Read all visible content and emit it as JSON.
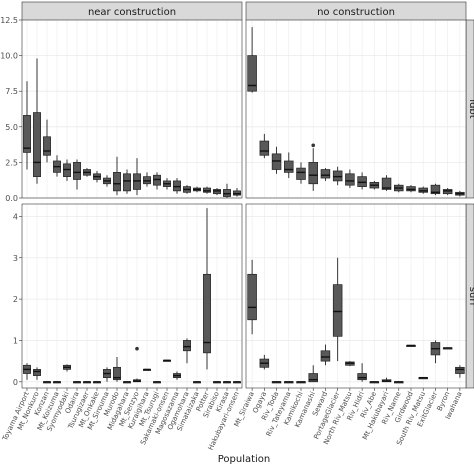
{
  "x_axis_title": "Population",
  "y_axis_title": "",
  "panels": {
    "near": {
      "strip_label": "near construction",
      "populations": [
        "Toyama Airport",
        "Mt_Nonkuro",
        "Konzan",
        "Mt_Koizuma",
        "Syomyodaki",
        "Odaira",
        "Tsurugizaer",
        "Mt_Onkake",
        "Mt_Sirouma",
        "Murodo",
        "Midagahara",
        "Mt_Senzyo",
        "Kuraigihara",
        "Mt_Tsurugi",
        "Sakamaki-onsen",
        "Magosazama",
        "Ogamohara",
        "Simataizaka",
        "Potter",
        "Sirabiso",
        "Kirasa",
        "Hakubayari-onsen"
      ]
    },
    "no": {
      "strip_label": "no construction",
      "populations": [
        "Mt_Siraiwa",
        "Ogaya",
        "Riv_Toda",
        "Riv_Tateyama",
        "Kamikochi",
        "Kamanashi",
        "Seward",
        "PortageGlacier",
        "North Riv_Matsu",
        "Riv_Hidri",
        "Riv_Abe",
        "Mt_Hakubayari",
        "Riv_Name",
        "Girdwood",
        "South Riv_Matsu",
        "ExitGlacier",
        "Byron",
        "Iwahana"
      ]
    }
  },
  "rows": {
    "top": {
      "strip_label": "ldbt"
    },
    "bottom": {
      "strip_label": "suri"
    }
  },
  "chart_data": {
    "type": "boxplot",
    "facets": [
      "near construction",
      "no construction"
    ],
    "rows": [
      "ldbt",
      "suri"
    ],
    "xlabel": "Population",
    "ylabel": "",
    "top_row": {
      "ylim": [
        0,
        12.5
      ],
      "yticks": [
        0,
        2.5,
        5.0,
        7.5,
        10.0,
        12.5
      ],
      "near construction": [
        {
          "q1": 3.2,
          "median": 3.5,
          "q3": 5.8,
          "whisker_low": 2.0,
          "whisker_high": 8.2
        },
        {
          "q1": 1.5,
          "median": 2.5,
          "q3": 6.0,
          "whisker_low": 1.0,
          "whisker_high": 9.8
        },
        {
          "q1": 3.0,
          "median": 3.3,
          "q3": 4.3,
          "whisker_low": 2.5,
          "whisker_high": 5.5
        },
        {
          "q1": 1.8,
          "median": 2.2,
          "q3": 2.6,
          "whisker_low": 1.5,
          "whisker_high": 3.0
        },
        {
          "q1": 1.5,
          "median": 2.0,
          "q3": 2.4,
          "whisker_low": 1.2,
          "whisker_high": 2.7
        },
        {
          "q1": 1.3,
          "median": 1.8,
          "q3": 2.5,
          "whisker_low": 0.6,
          "whisker_high": 2.7
        },
        {
          "q1": 1.6,
          "median": 1.8,
          "q3": 2.0,
          "whisker_low": 1.5,
          "whisker_high": 2.1
        },
        {
          "q1": 1.3,
          "median": 1.5,
          "q3": 1.7,
          "whisker_low": 1.1,
          "whisker_high": 1.9
        },
        {
          "q1": 1.0,
          "median": 1.2,
          "q3": 1.4,
          "whisker_low": 0.8,
          "whisker_high": 1.6
        },
        {
          "q1": 0.5,
          "median": 1.0,
          "q3": 1.8,
          "whisker_low": 0.2,
          "whisker_high": 2.9
        },
        {
          "q1": 0.5,
          "median": 1.2,
          "q3": 1.7,
          "whisker_low": 0.3,
          "whisker_high": 2.0
        },
        {
          "q1": 0.6,
          "median": 1.2,
          "q3": 1.7,
          "whisker_low": 0.2,
          "whisker_high": 2.8
        },
        {
          "q1": 1.0,
          "median": 1.2,
          "q3": 1.5,
          "whisker_low": 0.8,
          "whisker_high": 1.8
        },
        {
          "q1": 0.9,
          "median": 1.3,
          "q3": 1.6,
          "whisker_low": 0.6,
          "whisker_high": 1.8
        },
        {
          "q1": 0.8,
          "median": 1.0,
          "q3": 1.2,
          "whisker_low": 0.6,
          "whisker_high": 1.4
        },
        {
          "q1": 0.5,
          "median": 0.8,
          "q3": 1.2,
          "whisker_low": 0.3,
          "whisker_high": 1.4
        },
        {
          "q1": 0.4,
          "median": 0.6,
          "q3": 0.8,
          "whisker_low": 0.3,
          "whisker_high": 0.9
        },
        {
          "q1": 0.5,
          "median": 0.6,
          "q3": 0.7,
          "whisker_low": 0.4,
          "whisker_high": 0.8
        },
        {
          "q1": 0.4,
          "median": 0.5,
          "q3": 0.7,
          "whisker_low": 0.3,
          "whisker_high": 0.8
        },
        {
          "q1": 0.3,
          "median": 0.5,
          "q3": 0.6,
          "whisker_low": 0.2,
          "whisker_high": 0.7
        },
        {
          "q1": 0.1,
          "median": 0.3,
          "q3": 0.6,
          "whisker_low": 0.0,
          "whisker_high": 1.0
        },
        {
          "q1": 0.2,
          "median": 0.3,
          "q3": 0.5,
          "whisker_low": 0.1,
          "whisker_high": 0.7
        }
      ],
      "no construction": [
        {
          "q1": 7.5,
          "median": 7.9,
          "q3": 10.0,
          "whisker_low": 7.4,
          "whisker_high": 12.0
        },
        {
          "q1": 3.0,
          "median": 3.3,
          "q3": 4.0,
          "whisker_low": 2.8,
          "whisker_high": 4.5
        },
        {
          "q1": 2.0,
          "median": 2.6,
          "q3": 3.1,
          "whisker_low": 1.7,
          "whisker_high": 3.6
        },
        {
          "q1": 1.8,
          "median": 2.0,
          "q3": 2.6,
          "whisker_low": 1.4,
          "whisker_high": 3.2
        },
        {
          "q1": 1.3,
          "median": 1.8,
          "q3": 2.1,
          "whisker_low": 1.0,
          "whisker_high": 2.5
        },
        {
          "q1": 1.0,
          "median": 1.6,
          "q3": 2.5,
          "whisker_low": 0.5,
          "whisker_high": 3.5
        },
        {
          "q1": 1.4,
          "median": 1.6,
          "q3": 2.0,
          "whisker_low": 1.2,
          "whisker_high": 2.1
        },
        {
          "q1": 1.2,
          "median": 1.5,
          "q3": 1.9,
          "whisker_low": 0.9,
          "whisker_high": 2.2
        },
        {
          "q1": 0.9,
          "median": 1.2,
          "q3": 1.7,
          "whisker_low": 0.7,
          "whisker_high": 2.0
        },
        {
          "q1": 0.8,
          "median": 1.1,
          "q3": 1.5,
          "whisker_low": 0.6,
          "whisker_high": 1.8
        },
        {
          "q1": 0.7,
          "median": 0.9,
          "q3": 1.1,
          "whisker_low": 0.6,
          "whisker_high": 1.2
        },
        {
          "q1": 0.6,
          "median": 0.7,
          "q3": 1.4,
          "whisker_low": 0.5,
          "whisker_high": 1.6
        },
        {
          "q1": 0.5,
          "median": 0.7,
          "q3": 0.9,
          "whisker_low": 0.4,
          "whisker_high": 1.0
        },
        {
          "q1": 0.5,
          "median": 0.6,
          "q3": 0.8,
          "whisker_low": 0.4,
          "whisker_high": 0.9
        },
        {
          "q1": 0.4,
          "median": 0.5,
          "q3": 0.7,
          "whisker_low": 0.3,
          "whisker_high": 0.8
        },
        {
          "q1": 0.3,
          "median": 0.4,
          "q3": 0.9,
          "whisker_low": 0.2,
          "whisker_high": 1.0
        },
        {
          "q1": 0.3,
          "median": 0.5,
          "q3": 0.6,
          "whisker_low": 0.2,
          "whisker_high": 0.7
        },
        {
          "q1": 0.2,
          "median": 0.3,
          "q3": 0.4,
          "whisker_low": 0.1,
          "whisker_high": 0.5
        }
      ]
    },
    "bottom_row": {
      "ylim": [
        -0.15,
        4.3
      ],
      "yticks": [
        0,
        1,
        2,
        3,
        4
      ],
      "near construction": [
        {
          "q1": 0.2,
          "median": 0.3,
          "q3": 0.4,
          "whisker_low": 0.05,
          "whisker_high": 0.45
        },
        {
          "q1": 0.15,
          "median": 0.25,
          "q3": 0.3,
          "whisker_low": 0.05,
          "whisker_high": 0.35
        },
        {
          "q1": 0.0,
          "median": 0.0,
          "q3": 0.0,
          "whisker_low": 0.0,
          "whisker_high": 0.0
        },
        {
          "q1": 0.0,
          "median": 0.0,
          "q3": 0.0,
          "whisker_low": 0.0,
          "whisker_high": 0.0
        },
        {
          "q1": 0.3,
          "median": 0.35,
          "q3": 0.4,
          "whisker_low": 0.25,
          "whisker_high": 0.42
        },
        {
          "q1": 0.0,
          "median": 0.0,
          "q3": 0.0,
          "whisker_low": 0.0,
          "whisker_high": 0.0
        },
        {
          "q1": 0.0,
          "median": 0.0,
          "q3": 0.0,
          "whisker_low": 0.0,
          "whisker_high": 0.0
        },
        {
          "q1": 0.0,
          "median": 0.0,
          "q3": 0.0,
          "whisker_low": 0.0,
          "whisker_high": 0.0
        },
        {
          "q1": 0.1,
          "median": 0.2,
          "q3": 0.3,
          "whisker_low": 0.0,
          "whisker_high": 0.35
        },
        {
          "q1": 0.05,
          "median": 0.1,
          "q3": 0.35,
          "whisker_low": 0.0,
          "whisker_high": 0.6
        },
        {
          "q1": 0.0,
          "median": 0.0,
          "q3": 0.0,
          "whisker_low": 0.0,
          "whisker_high": 0.0
        },
        {
          "q1": 0.0,
          "median": 0.02,
          "q3": 0.05,
          "whisker_low": 0.0,
          "whisker_high": 0.08
        },
        {
          "q1": 0.3,
          "median": 0.3,
          "q3": 0.3,
          "whisker_low": 0.3,
          "whisker_high": 0.3
        },
        {
          "q1": 0.0,
          "median": 0.0,
          "q3": 0.0,
          "whisker_low": 0.0,
          "whisker_high": 0.0
        },
        {
          "q1": 0.52,
          "median": 0.52,
          "q3": 0.52,
          "whisker_low": 0.52,
          "whisker_high": 0.52
        },
        {
          "q1": 0.1,
          "median": 0.15,
          "q3": 0.2,
          "whisker_low": 0.05,
          "whisker_high": 0.25
        },
        {
          "q1": 0.75,
          "median": 0.85,
          "q3": 1.0,
          "whisker_low": 0.45,
          "whisker_high": 1.05
        },
        {
          "q1": 0.0,
          "median": 0.0,
          "q3": 0.0,
          "whisker_low": 0.0,
          "whisker_high": 0.0
        },
        {
          "q1": 0.7,
          "median": 0.95,
          "q3": 2.6,
          "whisker_low": 0.3,
          "whisker_high": 4.2
        },
        {
          "q1": 0.0,
          "median": 0.0,
          "q3": 0.0,
          "whisker_low": 0.0,
          "whisker_high": 0.0
        },
        {
          "q1": 0.0,
          "median": 0.0,
          "q3": 0.0,
          "whisker_low": 0.0,
          "whisker_high": 0.0
        },
        {
          "q1": 0.0,
          "median": 0.0,
          "q3": 0.0,
          "whisker_low": 0.0,
          "whisker_high": 0.0
        }
      ],
      "no construction": [
        {
          "q1": 1.5,
          "median": 1.8,
          "q3": 2.6,
          "whisker_low": 1.15,
          "whisker_high": 2.95
        },
        {
          "q1": 0.35,
          "median": 0.45,
          "q3": 0.55,
          "whisker_low": 0.3,
          "whisker_high": 0.65
        },
        {
          "q1": 0.0,
          "median": 0.0,
          "q3": 0.0,
          "whisker_low": 0.0,
          "whisker_high": 0.0
        },
        {
          "q1": 0.0,
          "median": 0.0,
          "q3": 0.0,
          "whisker_low": 0.0,
          "whisker_high": 0.0
        },
        {
          "q1": 0.0,
          "median": 0.0,
          "q3": 0.0,
          "whisker_low": 0.0,
          "whisker_high": 0.0
        },
        {
          "q1": 0.0,
          "median": 0.05,
          "q3": 0.2,
          "whisker_low": 0.0,
          "whisker_high": 0.4
        },
        {
          "q1": 0.5,
          "median": 0.6,
          "q3": 0.75,
          "whisker_low": 0.4,
          "whisker_high": 0.9
        },
        {
          "q1": 1.1,
          "median": 1.7,
          "q3": 2.35,
          "whisker_low": 0.5,
          "whisker_high": 3.0
        },
        {
          "q1": 0.4,
          "median": 0.45,
          "q3": 0.48,
          "whisker_low": 0.38,
          "whisker_high": 0.5
        },
        {
          "q1": 0.05,
          "median": 0.1,
          "q3": 0.2,
          "whisker_low": 0.0,
          "whisker_high": 0.45
        },
        {
          "q1": 0.0,
          "median": 0.0,
          "q3": 0.0,
          "whisker_low": 0.0,
          "whisker_high": 0.0
        },
        {
          "q1": 0.0,
          "median": 0.02,
          "q3": 0.05,
          "whisker_low": 0.0,
          "whisker_high": 0.1
        },
        {
          "q1": 0.0,
          "median": 0.0,
          "q3": 0.0,
          "whisker_low": 0.0,
          "whisker_high": 0.0
        },
        {
          "q1": 0.88,
          "median": 0.88,
          "q3": 0.88,
          "whisker_low": 0.88,
          "whisker_high": 0.88
        },
        {
          "q1": 0.1,
          "median": 0.1,
          "q3": 0.1,
          "whisker_low": 0.1,
          "whisker_high": 0.1
        },
        {
          "q1": 0.65,
          "median": 0.8,
          "q3": 0.95,
          "whisker_low": 0.45,
          "whisker_high": 1.0
        },
        {
          "q1": 0.82,
          "median": 0.82,
          "q3": 0.82,
          "whisker_low": 0.82,
          "whisker_high": 0.82
        },
        {
          "q1": 0.2,
          "median": 0.3,
          "q3": 0.35,
          "whisker_low": 0.1,
          "whisker_high": 0.4
        }
      ]
    },
    "outliers": [
      {
        "row": "ldbt",
        "facet": "no construction",
        "population": "Kamanashi",
        "value": 3.7
      },
      {
        "row": "suri",
        "facet": "near construction",
        "population": "Mt_Senzyo",
        "value": 0.8
      }
    ],
    "colors": {
      "box_fill": "#595959",
      "box_stroke": "#222222",
      "median": "#111111",
      "panel_background": "#ffffff",
      "strip_background": "#d9d9d9",
      "grid": "#ebebeb",
      "outliers": "#333333"
    },
    "grid": true
  }
}
